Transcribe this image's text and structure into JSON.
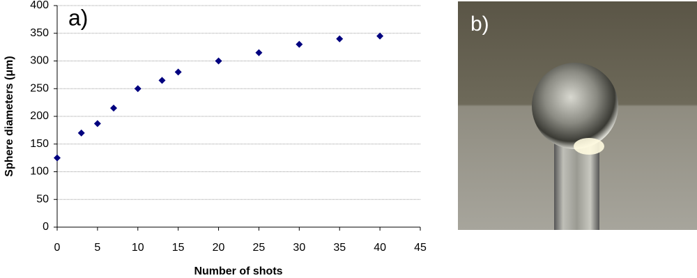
{
  "chart_data": {
    "type": "scatter",
    "annotations": [
      "a)",
      "b)"
    ],
    "xlabel": "Number of shots",
    "ylabel": "Sphere diameters (μm)",
    "x": [
      0,
      3,
      5,
      7,
      10,
      13,
      15,
      20,
      25,
      30,
      35,
      40
    ],
    "values": [
      125,
      170,
      187,
      215,
      250,
      265,
      280,
      300,
      315,
      330,
      340,
      345
    ],
    "color": "#00007f",
    "xlim": [
      0,
      45
    ],
    "xticks": [
      0,
      5,
      10,
      15,
      20,
      25,
      30,
      35,
      40,
      45
    ],
    "ylim": [
      0,
      400
    ],
    "yticks": [
      0,
      50,
      100,
      150,
      200,
      250,
      300,
      350,
      400
    ],
    "grid": true
  }
}
